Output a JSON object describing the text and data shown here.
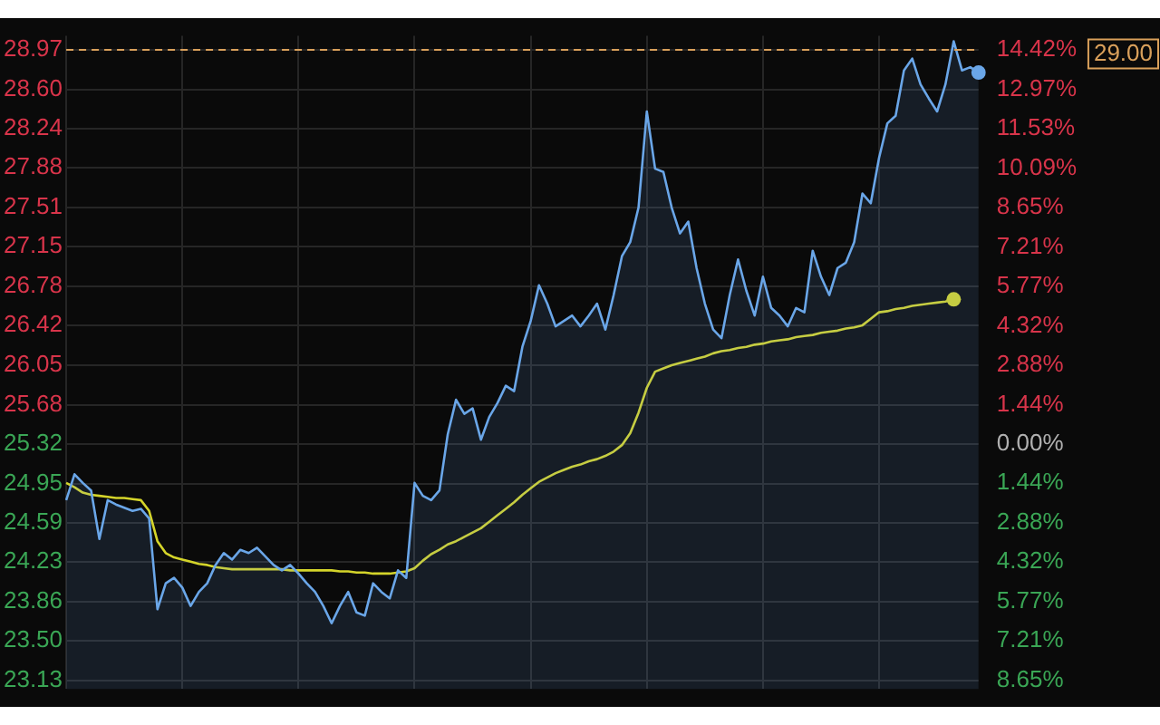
{
  "chart_data": {
    "type": "line",
    "categories": [
      null,
      null,
      null,
      null,
      null,
      null,
      null,
      null,
      null,
      null,
      null,
      null,
      null,
      null,
      null,
      null,
      null,
      null,
      null,
      null,
      null,
      null,
      null,
      null,
      null,
      null,
      null,
      null,
      null,
      null,
      null,
      null,
      null,
      null,
      null,
      null,
      null,
      null,
      null,
      null,
      null,
      null,
      null,
      null,
      null,
      null,
      null,
      null,
      null,
      null,
      null,
      null,
      null,
      null,
      null,
      null,
      null,
      null,
      null,
      null,
      null,
      null,
      null,
      null,
      null,
      null,
      null,
      null,
      null,
      null,
      null,
      null,
      null,
      null,
      null,
      null,
      null,
      null,
      null,
      null,
      null,
      null,
      null,
      null,
      null,
      null,
      null,
      null,
      null,
      null,
      null,
      null,
      null,
      null,
      null,
      null,
      null,
      null,
      null,
      null,
      null,
      null,
      null,
      null,
      null,
      null,
      null,
      null,
      null,
      null,
      null
    ],
    "series": [
      {
        "type": "area",
        "color": "#6aa6e8",
        "values": [
          24.8,
          25.04,
          24.96,
          24.89,
          24.44,
          24.8,
          24.76,
          24.73,
          24.7,
          24.72,
          24.63,
          23.79,
          24.03,
          24.08,
          23.99,
          23.82,
          23.95,
          24.03,
          24.2,
          24.31,
          24.25,
          24.34,
          24.31,
          24.36,
          24.28,
          24.2,
          24.15,
          24.2,
          24.12,
          24.03,
          23.95,
          23.82,
          23.66,
          23.82,
          23.95,
          23.76,
          23.73,
          24.03,
          23.95,
          23.89,
          24.15,
          24.08,
          24.96,
          24.84,
          24.8,
          24.89,
          25.41,
          25.73,
          25.6,
          25.65,
          25.36,
          25.57,
          25.7,
          25.86,
          25.81,
          26.22,
          26.46,
          26.79,
          26.62,
          26.41,
          26.46,
          26.51,
          26.41,
          26.51,
          26.62,
          26.38,
          26.7,
          27.06,
          27.19,
          27.51,
          28.4,
          27.87,
          27.84,
          27.51,
          27.27,
          27.38,
          26.95,
          26.62,
          26.38,
          26.3,
          26.7,
          27.03,
          26.74,
          26.51,
          26.87,
          26.58,
          26.51,
          26.41,
          26.58,
          26.54,
          27.11,
          26.87,
          26.7,
          26.95,
          27.0,
          27.19,
          27.64,
          27.55,
          27.97,
          28.29,
          28.36,
          28.78,
          28.89,
          28.65,
          28.52,
          28.4,
          28.65,
          29.05,
          28.78,
          28.81,
          28.76
        ]
      },
      {
        "type": "line",
        "color": "#d4d42a",
        "values": [
          24.96,
          24.92,
          24.87,
          24.85,
          24.84,
          24.83,
          24.82,
          24.82,
          24.81,
          24.8,
          24.7,
          24.42,
          24.31,
          24.27,
          24.25,
          24.23,
          24.21,
          24.2,
          24.18,
          24.17,
          24.16,
          24.16,
          24.16,
          24.16,
          24.16,
          24.16,
          24.16,
          24.15,
          24.15,
          24.15,
          24.15,
          24.15,
          24.15,
          24.14,
          24.14,
          24.13,
          24.13,
          24.12,
          24.12,
          24.12,
          24.13,
          24.14,
          24.17,
          24.24,
          24.3,
          24.34,
          24.39,
          24.42,
          24.46,
          24.5,
          24.54,
          24.6,
          24.66,
          24.72,
          24.78,
          24.85,
          24.91,
          24.97,
          25.01,
          25.05,
          25.08,
          25.11,
          25.13,
          25.16,
          25.18,
          25.21,
          25.25,
          25.31,
          25.42,
          25.61,
          25.84,
          25.99,
          26.02,
          26.05,
          26.07,
          26.09,
          26.11,
          26.13,
          26.16,
          26.18,
          26.19,
          26.21,
          26.22,
          26.24,
          26.25,
          26.27,
          26.28,
          26.29,
          26.31,
          26.32,
          26.33,
          26.35,
          26.36,
          26.37,
          26.39,
          26.4,
          26.42,
          26.48,
          26.54,
          26.55,
          26.57,
          26.58,
          26.6,
          26.61,
          26.62,
          26.63,
          26.64,
          26.66,
          null,
          null,
          null
        ]
      }
    ],
    "ylim": [
      23.05,
      29.1
    ],
    "yticks": [
      23.13,
      {
        "value": 23.5,
        "label": "23.50"
      },
      23.86,
      24.23,
      24.59,
      24.95,
      25.32,
      25.68,
      26.05,
      26.42,
      26.78,
      27.15,
      27.51,
      27.88,
      28.24,
      {
        "value": 28.6,
        "label": "28.60"
      },
      28.97
    ],
    "y2lim": [
      -8.97,
      14.93
    ],
    "y2ticks": [
      {
        "value": -8.65,
        "label": "8.65%"
      },
      {
        "value": -7.21,
        "label": "7.21%"
      },
      {
        "value": -5.77,
        "label": "5.77%"
      },
      {
        "value": -4.32,
        "label": "4.32%"
      },
      {
        "value": -2.88,
        "label": "2.88%"
      },
      {
        "value": -1.44,
        "label": "1.44%"
      },
      {
        "value": 0,
        "label": "0.00%"
      },
      {
        "value": 1.44,
        "label": "1.44%"
      },
      {
        "value": 2.88,
        "label": "2.88%"
      },
      {
        "value": 4.32,
        "label": "4.32%"
      },
      {
        "value": 5.77,
        "label": "5.77%"
      },
      {
        "value": 7.21,
        "label": "7.21%"
      },
      {
        "value": 8.65,
        "label": "8.65%"
      },
      {
        "value": 10.09,
        "label": "10.09%"
      },
      {
        "value": 11.53,
        "label": "11.53%"
      },
      {
        "value": 12.97,
        "label": "12.97%"
      },
      {
        "value": 14.42,
        "label": "14.42%"
      }
    ],
    "ref_lines": [
      {
        "axis": "y",
        "value": 28.97,
        "color": "#d9a05b",
        "line_style": "dashed"
      }
    ],
    "annotations": [
      "29.00"
    ],
    "grid": true,
    "legend": false
  }
}
